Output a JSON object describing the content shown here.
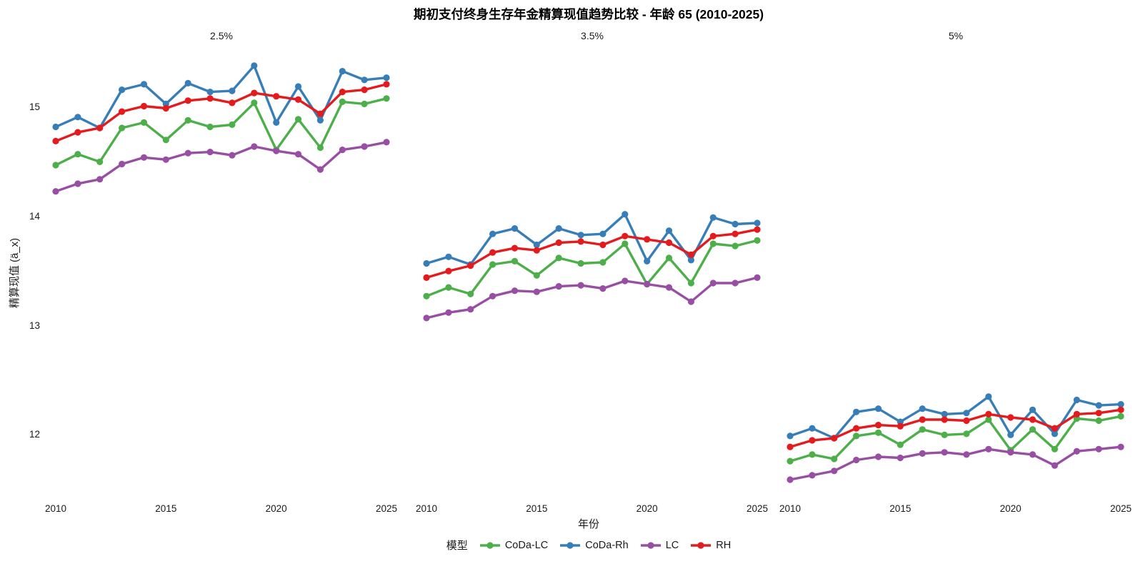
{
  "page": {
    "title": "期初支付终身生存年金精算现值趋势比较 - 年龄 65 (2010-2025)"
  },
  "axes": {
    "x_title": "年份",
    "y_title": "精算现值 (ä_x)",
    "y_ticks": [
      "15",
      "14",
      "13",
      "12"
    ],
    "x_ticks": [
      "2010",
      "2015",
      "2020",
      "2025"
    ]
  },
  "legend": {
    "title": "模型",
    "entries": [
      {
        "label": "CoDa-LC",
        "color": "#4DAF4A"
      },
      {
        "label": "CoDa-Rh",
        "color": "#377EB8"
      },
      {
        "label": "LC",
        "color": "#984EA3"
      },
      {
        "label": "RH",
        "color": "#E41A1C"
      }
    ]
  },
  "chart_data": [
    {
      "type": "line",
      "facet": "2.5%",
      "title": "期初支付终身生存年金精算现值趋势比较 - 年龄 65 (2010-2025)",
      "xlabel": "年份",
      "ylabel": "精算现值 (ä_x)",
      "ylim": [
        11.5,
        15.5
      ],
      "grid": false,
      "legend_position": "bottom",
      "x": [
        2010,
        2011,
        2012,
        2013,
        2014,
        2015,
        2016,
        2017,
        2018,
        2019,
        2020,
        2021,
        2022,
        2023,
        2024,
        2025
      ],
      "series": [
        {
          "name": "CoDa-LC",
          "color": "#4DAF4A",
          "values": [
            14.47,
            14.57,
            14.5,
            14.81,
            14.86,
            14.7,
            14.88,
            14.82,
            14.84,
            15.04,
            14.61,
            14.89,
            14.63,
            15.05,
            15.03,
            15.08
          ]
        },
        {
          "name": "CoDa-Rh",
          "color": "#377EB8",
          "values": [
            14.82,
            14.91,
            14.81,
            15.16,
            15.21,
            15.03,
            15.22,
            15.14,
            15.15,
            15.38,
            14.86,
            15.19,
            14.88,
            15.33,
            15.25,
            15.27
          ]
        },
        {
          "name": "LC",
          "color": "#984EA3",
          "values": [
            14.23,
            14.3,
            14.34,
            14.48,
            14.54,
            14.52,
            14.58,
            14.59,
            14.56,
            14.64,
            14.6,
            14.57,
            14.43,
            14.61,
            14.64,
            14.68
          ]
        },
        {
          "name": "RH",
          "color": "#E41A1C",
          "values": [
            14.69,
            14.77,
            14.81,
            14.96,
            15.01,
            14.99,
            15.06,
            15.08,
            15.04,
            15.13,
            15.1,
            15.07,
            14.94,
            15.14,
            15.16,
            15.21
          ]
        }
      ]
    },
    {
      "type": "line",
      "facet": "3.5%",
      "xlabel": "年份",
      "ylabel": "精算现值 (ä_x)",
      "ylim": [
        11.5,
        15.5
      ],
      "grid": false,
      "x": [
        2010,
        2011,
        2012,
        2013,
        2014,
        2015,
        2016,
        2017,
        2018,
        2019,
        2020,
        2021,
        2022,
        2023,
        2024,
        2025
      ],
      "series": [
        {
          "name": "CoDa-LC",
          "color": "#4DAF4A",
          "values": [
            13.27,
            13.35,
            13.29,
            13.56,
            13.59,
            13.46,
            13.62,
            13.57,
            13.58,
            13.75,
            13.38,
            13.62,
            13.39,
            13.75,
            13.73,
            13.78
          ]
        },
        {
          "name": "CoDa-Rh",
          "color": "#377EB8",
          "values": [
            13.57,
            13.63,
            13.56,
            13.84,
            13.89,
            13.74,
            13.89,
            13.83,
            13.84,
            14.02,
            13.59,
            13.87,
            13.6,
            13.99,
            13.93,
            13.94
          ]
        },
        {
          "name": "LC",
          "color": "#984EA3",
          "values": [
            13.07,
            13.12,
            13.15,
            13.27,
            13.32,
            13.31,
            13.36,
            13.37,
            13.34,
            13.41,
            13.38,
            13.35,
            13.22,
            13.39,
            13.39,
            13.44
          ]
        },
        {
          "name": "RH",
          "color": "#E41A1C",
          "values": [
            13.44,
            13.5,
            13.55,
            13.67,
            13.71,
            13.69,
            13.76,
            13.77,
            13.74,
            13.82,
            13.79,
            13.76,
            13.65,
            13.82,
            13.84,
            13.88
          ]
        }
      ]
    },
    {
      "type": "line",
      "facet": "5%",
      "xlabel": "年份",
      "ylabel": "精算现值 (ä_x)",
      "ylim": [
        11.5,
        15.5
      ],
      "grid": false,
      "x": [
        2010,
        2011,
        2012,
        2013,
        2014,
        2015,
        2016,
        2017,
        2018,
        2019,
        2020,
        2021,
        2022,
        2023,
        2024,
        2025
      ],
      "series": [
        {
          "name": "CoDa-LC",
          "color": "#4DAF4A",
          "values": [
            11.76,
            11.82,
            11.78,
            11.99,
            12.02,
            11.91,
            12.05,
            12.0,
            12.01,
            12.14,
            11.86,
            12.05,
            11.87,
            12.15,
            12.13,
            12.17
          ]
        },
        {
          "name": "CoDa-Rh",
          "color": "#377EB8",
          "values": [
            11.99,
            12.06,
            11.97,
            12.21,
            12.24,
            12.12,
            12.24,
            12.19,
            12.2,
            12.35,
            12.0,
            12.23,
            12.01,
            12.32,
            12.27,
            12.28
          ]
        },
        {
          "name": "LC",
          "color": "#984EA3",
          "values": [
            11.59,
            11.63,
            11.67,
            11.77,
            11.8,
            11.79,
            11.83,
            11.84,
            11.82,
            11.87,
            11.84,
            11.82,
            11.72,
            11.85,
            11.87,
            11.89
          ]
        },
        {
          "name": "RH",
          "color": "#E41A1C",
          "values": [
            11.89,
            11.95,
            11.97,
            12.06,
            12.09,
            12.08,
            12.14,
            12.14,
            12.13,
            12.19,
            12.16,
            12.14,
            12.06,
            12.19,
            12.2,
            12.23
          ]
        }
      ]
    }
  ]
}
